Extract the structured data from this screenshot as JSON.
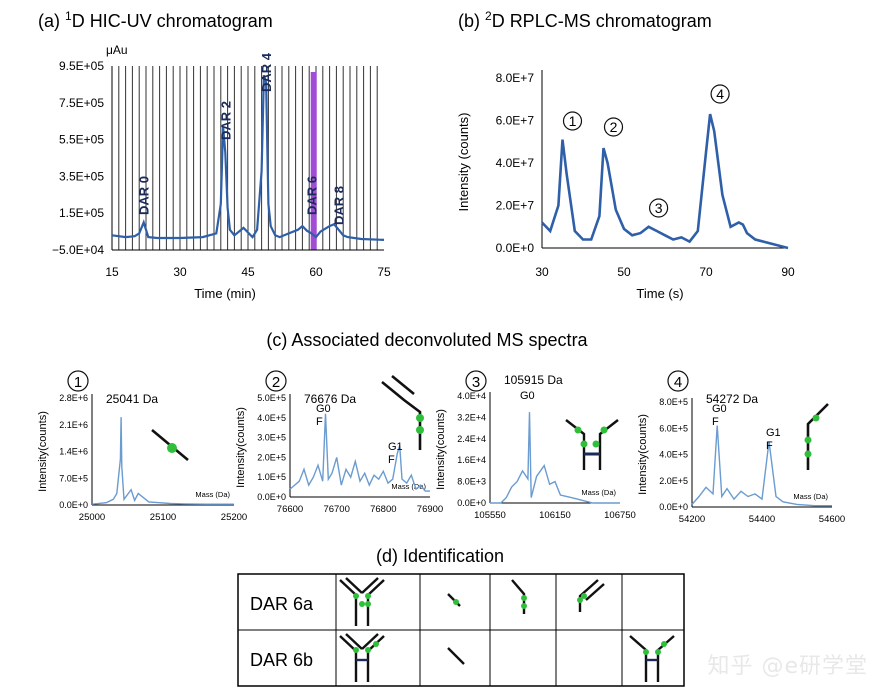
{
  "colors": {
    "line": "#2e5fa8",
    "light": "#6a9bd1",
    "purple": "#a14cd4",
    "green": "#2fbf3a",
    "dark": "#1a2a5a"
  },
  "panel_a": {
    "title_prefix": "(a) ",
    "title_sup": "1",
    "title_rest": "D HIC-UV chromatogram",
    "y_unit": "μAu",
    "xlabel": "Time (min)",
    "y_ticks": [
      "9.5E+05",
      "7.5E+05",
      "5.5E+05",
      "3.5E+05",
      "1.5E+05",
      "−5.0E+04"
    ],
    "x_ticks": [
      "15",
      "30",
      "45",
      "60",
      "75"
    ],
    "peak_labels": [
      "DAR 0",
      "DAR 2",
      "DAR 4",
      "DAR 6",
      "DAR 8"
    ]
  },
  "panel_b": {
    "title_prefix": "(b) ",
    "title_sup": "2",
    "title_rest": "D RPLC-MS chromatogram",
    "ylabel": "Intensity (counts)",
    "xlabel": "Time (s)",
    "y_ticks": [
      "8.0E+7",
      "6.0E+7",
      "4.0E+7",
      "2.0E+7",
      "0.0E+0"
    ],
    "x_ticks": [
      "30",
      "50",
      "70",
      "90"
    ],
    "peak_marks": [
      "1",
      "2",
      "3",
      "4"
    ]
  },
  "panel_c": {
    "title": "(c) Associated deconvoluted MS spectra",
    "spectra": [
      {
        "mark": "1",
        "mass": "25041 Da",
        "ylabel": "Intensity(counts)",
        "y_ticks": [
          "2.8E+6",
          "2.1E+6",
          "1.4E+6",
          "7.0E+5",
          "0.0E+0"
        ],
        "x_ticks": [
          "25000",
          "25100",
          "25200"
        ],
        "mass_axis": "Mass (Da)",
        "glycans": []
      },
      {
        "mark": "2",
        "mass": "76676 Da",
        "ylabel": "Intensity(counts)",
        "y_ticks": [
          "5.0E+5",
          "4.0E+5",
          "3.0E+5",
          "2.0E+5",
          "1.0E+5",
          "0.0E+0"
        ],
        "x_ticks": [
          "76600",
          "76700",
          "76800",
          "76900"
        ],
        "mass_axis": "Mass (Da)",
        "glycans": [
          [
            "G0",
            "F"
          ],
          [
            "G1",
            "F"
          ]
        ]
      },
      {
        "mark": "3",
        "mass": "105915 Da",
        "ylabel": "Intensity(counts)",
        "y_ticks": [
          "4.0E+4",
          "3.2E+4",
          "2.4E+4",
          "1.6E+4",
          "8.0E+3",
          "0.0E+0"
        ],
        "x_ticks": [
          "105550",
          "106150",
          "106750"
        ],
        "mass_axis": "Mass (Da)",
        "glycans": [
          [
            "G0"
          ]
        ]
      },
      {
        "mark": "4",
        "mass": "54272 Da",
        "ylabel": "Intensity(counts)",
        "y_ticks": [
          "8.0E+5",
          "6.0E+5",
          "4.0E+5",
          "2.0E+5",
          "0.0E+0"
        ],
        "x_ticks": [
          "54200",
          "54400",
          "54600"
        ],
        "mass_axis": "Mass (Da)",
        "glycans": [
          [
            "G0",
            "F"
          ],
          [
            "G1",
            "F"
          ]
        ]
      }
    ]
  },
  "panel_d": {
    "title": "(d) Identification",
    "rows": [
      "DAR 6a",
      "DAR 6b"
    ]
  },
  "watermark": "知乎 @e研学堂",
  "chart_data": [
    {
      "type": "line",
      "title": "(a) 1D HIC-UV chromatogram",
      "xlabel": "Time (min)",
      "ylabel": "μAu",
      "xlim": [
        15,
        75
      ],
      "ylim": [
        -50000,
        950000
      ],
      "x": [
        15,
        18,
        20,
        21,
        22,
        23,
        25,
        30,
        35,
        38,
        39,
        39.5,
        40,
        40.5,
        41,
        42,
        44,
        46,
        47,
        48,
        48.5,
        49,
        49.5,
        50,
        51,
        52,
        54,
        56,
        57,
        58,
        59,
        60,
        61,
        63,
        64,
        65,
        66,
        67,
        70,
        75
      ],
      "values": [
        30000,
        20000,
        25000,
        40000,
        100000,
        20000,
        15000,
        15000,
        20000,
        40000,
        200000,
        620000,
        480000,
        180000,
        60000,
        30000,
        70000,
        20000,
        60000,
        380000,
        900000,
        860000,
        200000,
        80000,
        30000,
        20000,
        40000,
        60000,
        80000,
        55000,
        40000,
        20000,
        50000,
        80000,
        90000,
        60000,
        30000,
        20000,
        10000,
        5000
      ],
      "grid": "vertical fraction lines every 1.5 min",
      "highlight": {
        "x": 59.5,
        "color": "#a14cd4"
      },
      "annotations": [
        {
          "text": "DAR 0",
          "x": 22
        },
        {
          "text": "DAR 2",
          "x": 40
        },
        {
          "text": "DAR 4",
          "x": 49
        },
        {
          "text": "DAR 6",
          "x": 59
        },
        {
          "text": "DAR 8",
          "x": 65
        }
      ]
    },
    {
      "type": "line",
      "title": "(b) 2D RPLC-MS chromatogram",
      "xlabel": "Time (s)",
      "ylabel": "Intensity (counts)",
      "xlim": [
        30,
        90
      ],
      "ylim": [
        0,
        80000000
      ],
      "x": [
        30,
        32,
        34,
        35,
        36,
        38,
        40,
        42,
        44,
        45,
        46,
        48,
        50,
        52,
        54,
        56,
        58,
        60,
        62,
        64,
        66,
        68,
        70,
        71,
        72,
        74,
        76,
        78,
        79,
        80,
        82,
        84,
        86,
        88,
        90
      ],
      "values": [
        12000000,
        8000000,
        20000000,
        51000000,
        35000000,
        8000000,
        4000000,
        4000000,
        15000000,
        47000000,
        40000000,
        18000000,
        9000000,
        6000000,
        7000000,
        10000000,
        8000000,
        6000000,
        4000000,
        5000000,
        3000000,
        8000000,
        45000000,
        63000000,
        55000000,
        25000000,
        10000000,
        12000000,
        11000000,
        7000000,
        4000000,
        3000000,
        2000000,
        1000000,
        0
      ],
      "annotations": [
        {
          "text": "1",
          "x": 35
        },
        {
          "text": "2",
          "x": 45
        },
        {
          "text": "3",
          "x": 56
        },
        {
          "text": "4",
          "x": 71
        }
      ]
    },
    {
      "type": "line",
      "title": "",
      "xlabel": "Mass (Da)",
      "ylabel": "Intensity(counts)",
      "xlim": [
        25000,
        25200
      ],
      "ylim": [
        0,
        2800000
      ],
      "x": [
        25000,
        25020,
        25030,
        25035,
        25040,
        25041,
        25042,
        25045,
        25055,
        25060,
        25065,
        25080,
        25095,
        25110,
        25130,
        25160,
        25200
      ],
      "values": [
        20000,
        60000,
        150000,
        300000,
        1200000,
        2300000,
        1000000,
        150000,
        400000,
        120000,
        300000,
        80000,
        60000,
        40000,
        30000,
        20000,
        20000
      ]
    },
    {
      "type": "line",
      "title": "",
      "xlabel": "Mass (Da)",
      "ylabel": "Intensity(counts)",
      "xlim": [
        76600,
        76900
      ],
      "ylim": [
        0,
        500000
      ],
      "x": [
        76600,
        76620,
        76630,
        76640,
        76650,
        76660,
        76670,
        76676,
        76682,
        76690,
        76700,
        76710,
        76720,
        76730,
        76740,
        76750,
        76760,
        76770,
        76780,
        76790,
        76800,
        76810,
        76820,
        76830,
        76835,
        76840,
        76850,
        76860,
        76870,
        76880,
        76890,
        76900
      ],
      "values": [
        40000,
        80000,
        140000,
        60000,
        100000,
        160000,
        80000,
        420000,
        90000,
        120000,
        200000,
        60000,
        140000,
        100000,
        180000,
        80000,
        120000,
        60000,
        110000,
        90000,
        130000,
        70000,
        90000,
        220000,
        260000,
        90000,
        70000,
        110000,
        40000,
        60000,
        30000,
        30000
      ]
    },
    {
      "type": "line",
      "title": "",
      "xlabel": "Mass (Da)",
      "ylabel": "Intensity(counts)",
      "xlim": [
        105550,
        106750
      ],
      "ylim": [
        0,
        40000
      ],
      "x": [
        105550,
        105650,
        105700,
        105750,
        105800,
        105850,
        105900,
        105915,
        105930,
        105980,
        106050,
        106100,
        106150,
        106200,
        106300,
        106400,
        106500,
        106600,
        106750
      ],
      "values": [
        0,
        0,
        2000,
        6000,
        8000,
        12000,
        9000,
        34000,
        2000,
        10000,
        14000,
        7000,
        8000,
        3000,
        2000,
        1000,
        0,
        0,
        0
      ]
    },
    {
      "type": "line",
      "title": "",
      "xlabel": "Mass (Da)",
      "ylabel": "Intensity(counts)",
      "xlim": [
        54200,
        54600
      ],
      "ylim": [
        0,
        800000
      ],
      "x": [
        54200,
        54220,
        54240,
        54260,
        54272,
        54285,
        54300,
        54320,
        54340,
        54360,
        54380,
        54400,
        54420,
        54440,
        54460,
        54500,
        54550,
        54600
      ],
      "values": [
        20000,
        80000,
        150000,
        100000,
        620000,
        80000,
        140000,
        60000,
        120000,
        80000,
        100000,
        60000,
        500000,
        80000,
        40000,
        20000,
        10000,
        10000
      ]
    }
  ]
}
